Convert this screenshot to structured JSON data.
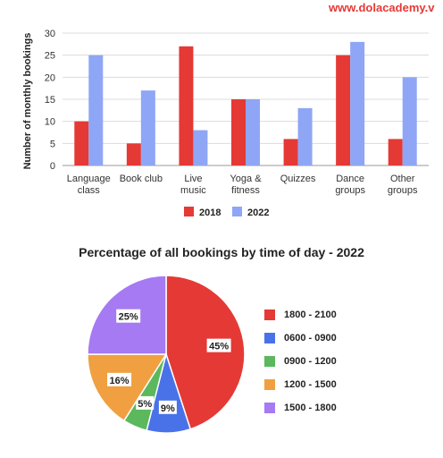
{
  "watermark": "www.dolacademy.v",
  "chart_data": [
    {
      "type": "bar",
      "ylabel": "Number of monthly bookings",
      "ylim": [
        0,
        30
      ],
      "yticks": [
        0,
        5,
        10,
        15,
        20,
        25,
        30
      ],
      "grid": true,
      "legend_position": "bottom",
      "categories": [
        [
          "Language",
          "class"
        ],
        [
          "Book club"
        ],
        [
          "Live",
          "music"
        ],
        [
          "Yoga &",
          "fitness"
        ],
        [
          "Quizzes"
        ],
        [
          "Dance",
          "groups"
        ],
        [
          "Other",
          "groups"
        ]
      ],
      "series": [
        {
          "name": "2018",
          "color": "#e53935",
          "values": [
            10,
            5,
            27,
            15,
            6,
            25,
            6
          ]
        },
        {
          "name": "2022",
          "color": "#8ea6f5",
          "values": [
            25,
            17,
            8,
            15,
            13,
            28,
            20
          ]
        }
      ]
    },
    {
      "type": "pie",
      "title": "Percentage of all bookings by time of day - 2022",
      "legend_position": "right",
      "slices": [
        {
          "label": "1800 - 2100",
          "value": 45,
          "color": "#e53935"
        },
        {
          "label": "0600 - 0900",
          "value": 9,
          "color": "#4a72e8"
        },
        {
          "label": "0900 - 1200",
          "value": 5,
          "color": "#5cb85c"
        },
        {
          "label": "1200 - 1500",
          "value": 16,
          "color": "#f0a040"
        },
        {
          "label": "1500 - 1800",
          "value": 25,
          "color": "#a57af2"
        }
      ]
    }
  ]
}
